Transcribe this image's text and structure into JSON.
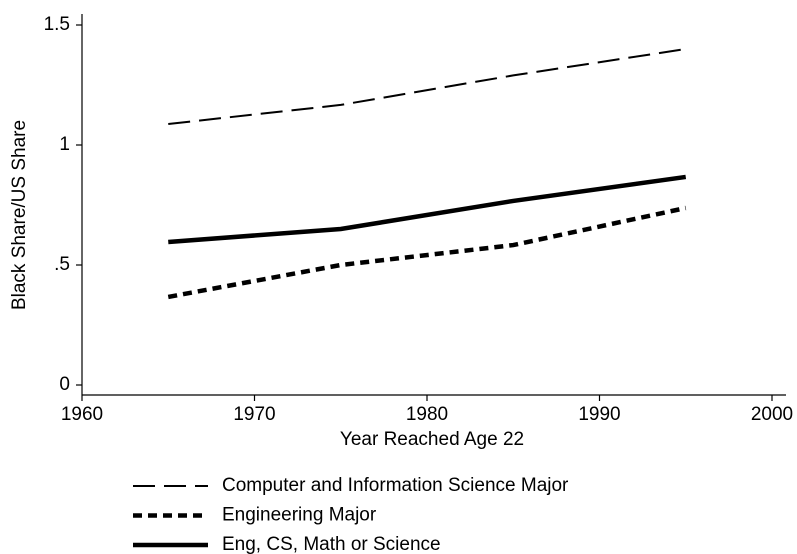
{
  "chart_data": {
    "type": "line",
    "xlabel": "Year Reached Age 22",
    "ylabel": "Black Share/US Share",
    "x": [
      1965,
      1975,
      1985,
      1995
    ],
    "series": [
      {
        "name": "Computer and Information Science Major",
        "color": "#000000",
        "dash": "long",
        "width": 2,
        "values": [
          1.0875,
          1.167,
          1.29,
          1.4
        ]
      },
      {
        "name": "Engineering Major",
        "color": "#000000",
        "dash": "short",
        "width": 4.5,
        "values": [
          0.367,
          0.5,
          0.583,
          0.7375
        ]
      },
      {
        "name": "Eng, CS, Math or Science",
        "color": "#000000",
        "dash": "solid",
        "width": 4.5,
        "values": [
          0.596,
          0.65,
          0.767,
          0.867
        ]
      }
    ],
    "xlim": [
      1960,
      2000
    ],
    "xticks": [
      1960,
      1970,
      1980,
      1990,
      2000
    ],
    "ylim": [
      0,
      1.5
    ],
    "yticks": [
      0,
      {
        "value": 0.5,
        "label": ".5"
      },
      1,
      1.5
    ],
    "legend": "bottom"
  }
}
